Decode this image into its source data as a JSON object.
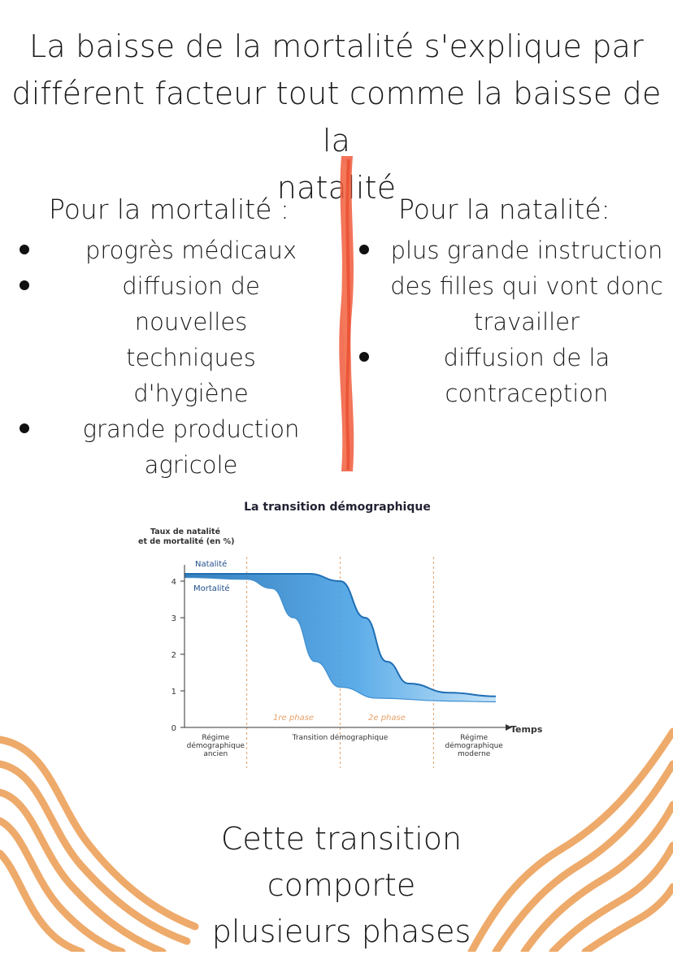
{
  "title": {
    "line1": "La baisse de la mortalité s'explique par",
    "line2": "différent facteur tout comme la baisse de la",
    "line3": "natalité"
  },
  "left": {
    "heading": "Pour la mortalité :",
    "items": [
      {
        "line1": "progrès médicaux",
        "line2": ""
      },
      {
        "line1": "diffusion de nouvelles",
        "line2": "techniques d'hygiène"
      },
      {
        "line1": "grande production",
        "line2": "agricole"
      }
    ]
  },
  "right": {
    "heading": "Pour la natalité:",
    "items": [
      {
        "line1": "plus grande instruction",
        "line2": "des filles qui vont donc",
        "line3": "travailler"
      },
      {
        "line1": "diffusion de la",
        "line2": "contraception",
        "line3": ""
      }
    ]
  },
  "chart_data": {
    "type": "area",
    "title": "La transition démographique",
    "ylabel_line1": "Taux de natalité",
    "ylabel_line2": "et de mortalité (en %)",
    "xlabel": "Temps",
    "ylim": [
      0,
      4
    ],
    "yticks": [
      "0",
      "1",
      "2",
      "3",
      "4"
    ],
    "series": [
      {
        "name": "Natalité",
        "points": [
          [
            0,
            4.2
          ],
          [
            25,
            4.2
          ],
          [
            40,
            4.2
          ],
          [
            50,
            4.0
          ],
          [
            58,
            3.0
          ],
          [
            65,
            1.8
          ],
          [
            72,
            1.2
          ],
          [
            85,
            0.95
          ],
          [
            100,
            0.85
          ]
        ]
      },
      {
        "name": "Mortalité",
        "points": [
          [
            0,
            4.1
          ],
          [
            20,
            4.05
          ],
          [
            28,
            3.8
          ],
          [
            35,
            3.0
          ],
          [
            42,
            1.8
          ],
          [
            50,
            1.1
          ],
          [
            62,
            0.8
          ],
          [
            85,
            0.72
          ],
          [
            100,
            0.7
          ]
        ]
      }
    ],
    "phase_labels": [
      "1re phase",
      "2e phase"
    ],
    "regimes": [
      {
        "line1": "Régime",
        "line2": "démographique",
        "line3": "ancien"
      },
      {
        "line1": "Transition démographique",
        "line2": "",
        "line3": ""
      },
      {
        "line1": "Régime",
        "line2": "démographique",
        "line3": "moderne"
      }
    ],
    "colors": {
      "natalite": "#1f6fb5",
      "fill": "#5aaeea",
      "phase": "#e7a26a",
      "axis": "#333333"
    }
  },
  "bottom": {
    "line1": "Cette transition",
    "line2": "comporte",
    "line3": "plusieurs phases"
  },
  "colors": {
    "divider": "#f05a3c",
    "waves": "#eeaa6a"
  }
}
